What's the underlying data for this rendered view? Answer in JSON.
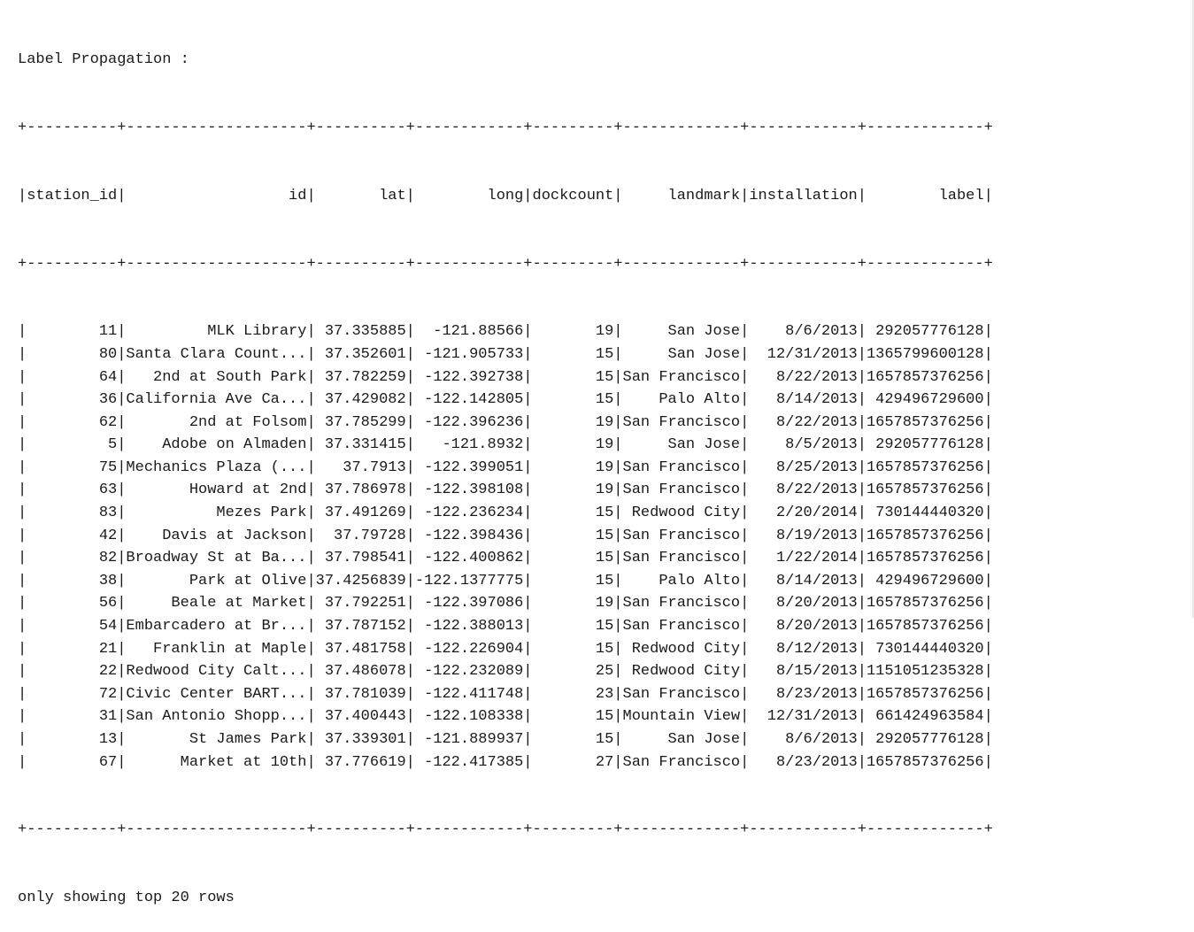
{
  "title": "Label Propagation :",
  "table": {
    "columns": [
      {
        "name": "station_id",
        "width": 10
      },
      {
        "name": "id",
        "width": 20
      },
      {
        "name": "lat",
        "width": 10
      },
      {
        "name": "long",
        "width": 12
      },
      {
        "name": "dockcount",
        "width": 9
      },
      {
        "name": "landmark",
        "width": 13
      },
      {
        "name": "installation",
        "width": 12
      },
      {
        "name": "label",
        "width": 13
      }
    ],
    "rows": [
      [
        "11",
        "MLK Library",
        "37.335885",
        "-121.88566",
        "19",
        "San Jose",
        "8/6/2013",
        "292057776128"
      ],
      [
        "80",
        "Santa Clara Count...",
        "37.352601",
        "-121.905733",
        "15",
        "San Jose",
        "12/31/2013",
        "1365799600128"
      ],
      [
        "64",
        "2nd at South Park",
        "37.782259",
        "-122.392738",
        "15",
        "San Francisco",
        "8/22/2013",
        "1657857376256"
      ],
      [
        "36",
        "California Ave Ca...",
        "37.429082",
        "-122.142805",
        "15",
        "Palo Alto",
        "8/14/2013",
        "429496729600"
      ],
      [
        "62",
        "2nd at Folsom",
        "37.785299",
        "-122.396236",
        "19",
        "San Francisco",
        "8/22/2013",
        "1657857376256"
      ],
      [
        "5",
        "Adobe on Almaden",
        "37.331415",
        "-121.8932",
        "19",
        "San Jose",
        "8/5/2013",
        "292057776128"
      ],
      [
        "75",
        "Mechanics Plaza (...",
        "37.7913",
        "-122.399051",
        "19",
        "San Francisco",
        "8/25/2013",
        "1657857376256"
      ],
      [
        "63",
        "Howard at 2nd",
        "37.786978",
        "-122.398108",
        "19",
        "San Francisco",
        "8/22/2013",
        "1657857376256"
      ],
      [
        "83",
        "Mezes Park",
        "37.491269",
        "-122.236234",
        "15",
        "Redwood City",
        "2/20/2014",
        "730144440320"
      ],
      [
        "42",
        "Davis at Jackson",
        "37.79728",
        "-122.398436",
        "15",
        "San Francisco",
        "8/19/2013",
        "1657857376256"
      ],
      [
        "82",
        "Broadway St at Ba...",
        "37.798541",
        "-122.400862",
        "15",
        "San Francisco",
        "1/22/2014",
        "1657857376256"
      ],
      [
        "38",
        "Park at Olive",
        "37.4256839",
        "-122.1377775",
        "15",
        "Palo Alto",
        "8/14/2013",
        "429496729600"
      ],
      [
        "56",
        "Beale at Market",
        "37.792251",
        "-122.397086",
        "19",
        "San Francisco",
        "8/20/2013",
        "1657857376256"
      ],
      [
        "54",
        "Embarcadero at Br...",
        "37.787152",
        "-122.388013",
        "15",
        "San Francisco",
        "8/20/2013",
        "1657857376256"
      ],
      [
        "21",
        "Franklin at Maple",
        "37.481758",
        "-122.226904",
        "15",
        "Redwood City",
        "8/12/2013",
        "730144440320"
      ],
      [
        "22",
        "Redwood City Calt...",
        "37.486078",
        "-122.232089",
        "25",
        "Redwood City",
        "8/15/2013",
        "1151051235328"
      ],
      [
        "72",
        "Civic Center BART...",
        "37.781039",
        "-122.411748",
        "23",
        "San Francisco",
        "8/23/2013",
        "1657857376256"
      ],
      [
        "31",
        "San Antonio Shopp...",
        "37.400443",
        "-122.108338",
        "15",
        "Mountain View",
        "12/31/2013",
        "661424963584"
      ],
      [
        "13",
        "St James Park",
        "37.339301",
        "-121.889937",
        "15",
        "San Jose",
        "8/6/2013",
        "292057776128"
      ],
      [
        "67",
        "Market at 10th",
        "37.776619",
        "-122.417385",
        "27",
        "San Francisco",
        "8/23/2013",
        "1657857376256"
      ]
    ]
  },
  "footer": "only showing top 20 rows"
}
